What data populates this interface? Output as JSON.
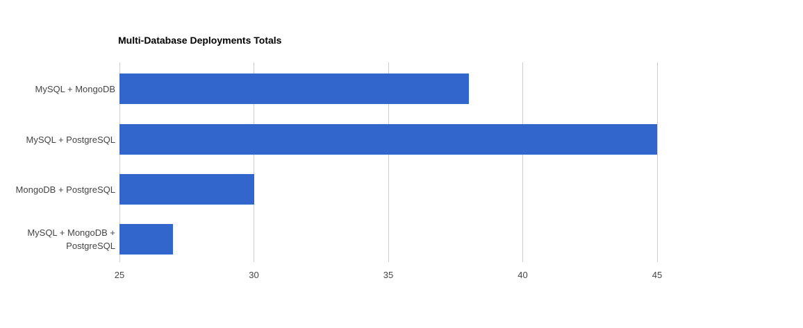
{
  "chart_data": {
    "type": "bar",
    "orientation": "horizontal",
    "title": "Multi-Database Deployments Totals",
    "categories": [
      "MySQL + MongoDB",
      "MySQL + PostgreSQL",
      "MongoDB + PostgreSQL",
      "MySQL + MongoDB +\nPostgreSQL"
    ],
    "values": [
      38,
      45,
      30,
      27
    ],
    "xticks": [
      25,
      30,
      35,
      40,
      45
    ],
    "xlim": [
      25,
      50
    ],
    "xlabel": "",
    "ylabel": "",
    "grid": true,
    "legend_position": "none",
    "colors": {
      "bar": "#3366cc",
      "gridline": "#cccccc",
      "axis_text": "#444444",
      "title_text": "#000000",
      "background": "#ffffff"
    }
  }
}
